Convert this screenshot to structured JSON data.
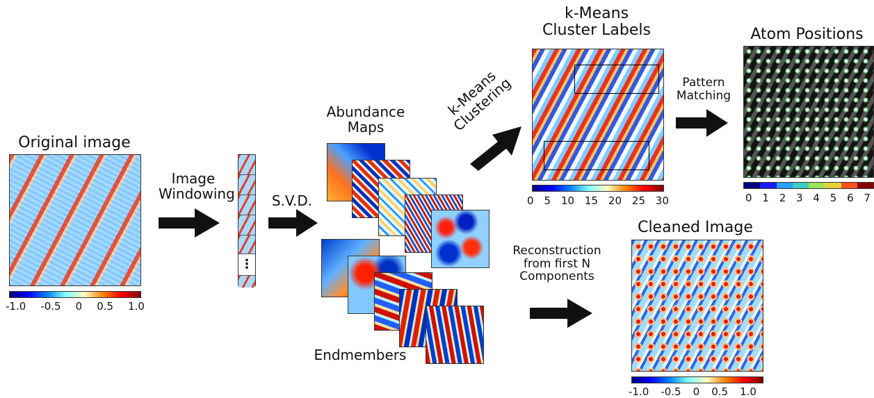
{
  "labels": {
    "original_image": "Original image",
    "image_windowing": [
      "Image",
      "Windowing"
    ],
    "svd": "S.V.D.",
    "abundance_maps": [
      "Abundance",
      "Maps"
    ],
    "endmembers": "Endmembers",
    "kmeans_clustering": [
      "k-Means",
      "Clustering"
    ],
    "kmeans_cluster_labels": [
      "k-Means",
      "Cluster Labels"
    ],
    "pattern_matching": [
      "Pattern",
      "Matching"
    ],
    "atom_positions": "Atom Positions",
    "reconstruction": [
      "Reconstruction",
      "from first N",
      "Components"
    ],
    "cleaned_image": "Cleaned Image",
    "window_dots": "⋮"
  },
  "colorbars": {
    "original": [
      "-1.0",
      "-0.5",
      "0",
      "0.5",
      "1.0"
    ],
    "clusters": [
      "0",
      "5",
      "10",
      "15",
      "20",
      "25",
      "30"
    ],
    "atoms": [
      "0",
      "1",
      "2",
      "3",
      "4",
      "5",
      "6",
      "7"
    ],
    "cleaned": [
      "-1.0",
      "-0.5",
      "0",
      "0.5",
      "1.0"
    ]
  },
  "colors": {
    "jet": [
      "#00007f",
      "#0000ff",
      "#0080ff",
      "#80ffff",
      "#ffffc0",
      "#ff8000",
      "#ff0000",
      "#7f0000"
    ],
    "atoms": [
      "#00007f",
      "#1a1aff",
      "#2aa0ff",
      "#3ccfc0",
      "#9de45a",
      "#e8d23a",
      "#ff5020",
      "#8a0000"
    ]
  }
}
